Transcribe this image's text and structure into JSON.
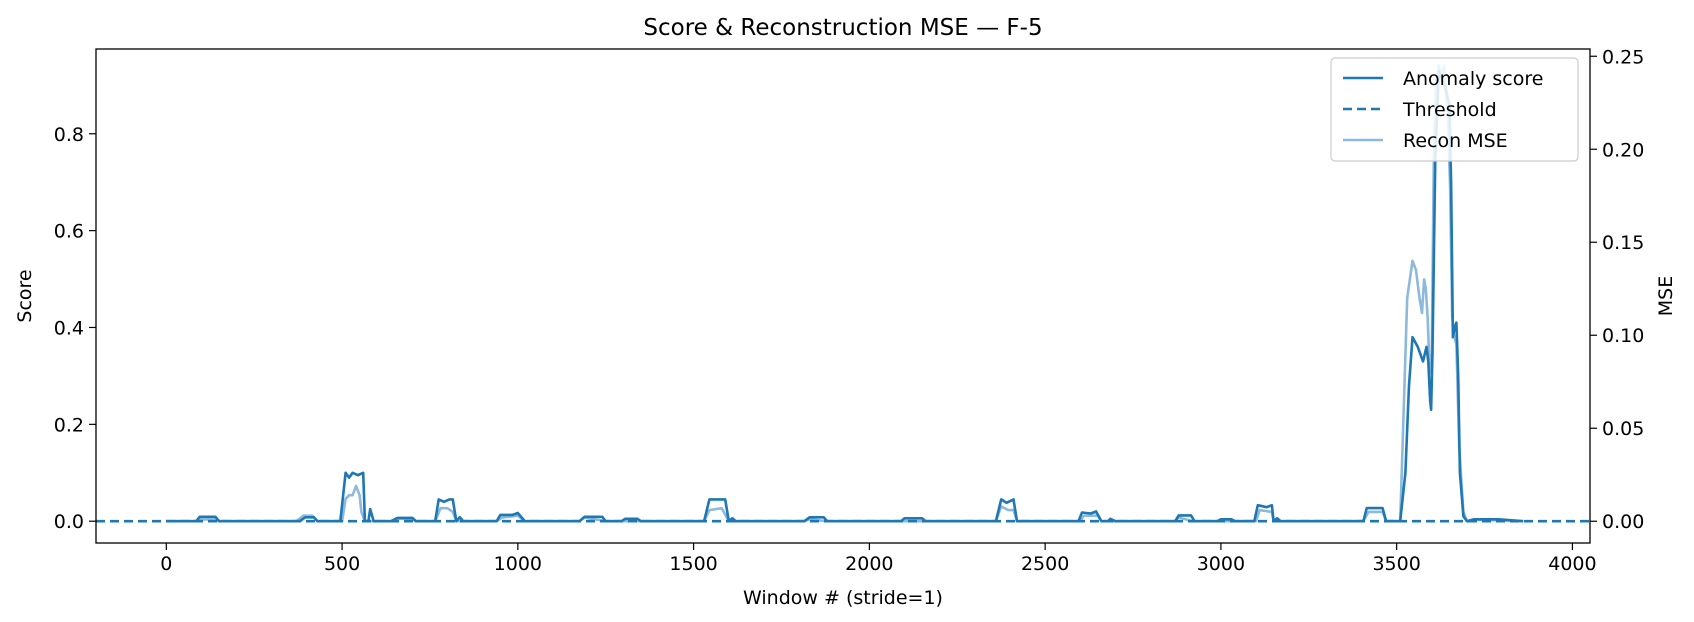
{
  "chart_data": {
    "type": "line",
    "title": "Score & Reconstruction MSE — F-5",
    "xlabel": "Window # (stride=1)",
    "ylabel": "Score",
    "y2label": "MSE",
    "xlim": [
      -200,
      4050
    ],
    "ylim": [
      -0.045,
      0.975
    ],
    "y2lim": [
      -0.0117,
      0.2539
    ],
    "xticks": [
      0,
      500,
      1000,
      1500,
      2000,
      2500,
      3000,
      3500,
      4000
    ],
    "yticks": [
      0.0,
      0.2,
      0.4,
      0.6,
      0.8
    ],
    "ytick_labels": [
      "0.0",
      "0.2",
      "0.4",
      "0.6",
      "0.8"
    ],
    "y2ticks": [
      0.0,
      0.05,
      0.1,
      0.15,
      0.2,
      0.25
    ],
    "y2tick_labels": [
      "0.00",
      "0.05",
      "0.10",
      "0.15",
      "0.20",
      "0.25"
    ],
    "grid": false,
    "legend_position": "top-right",
    "colors": {
      "score": "#1f77b4",
      "threshold": "#1f77b4",
      "mse": "#8cb9dc"
    },
    "threshold": 0.0,
    "series": [
      {
        "name": "Anomaly score",
        "axis": "left",
        "style": "solid",
        "points": [
          [
            0,
            0
          ],
          [
            85,
            0
          ],
          [
            95,
            0.009
          ],
          [
            140,
            0.009
          ],
          [
            150,
            0
          ],
          [
            380,
            0
          ],
          [
            395,
            0.008
          ],
          [
            420,
            0.008
          ],
          [
            430,
            0
          ],
          [
            495,
            0
          ],
          [
            510,
            0.1
          ],
          [
            520,
            0.09
          ],
          [
            530,
            0.1
          ],
          [
            545,
            0.095
          ],
          [
            560,
            0.1
          ],
          [
            565,
            0
          ],
          [
            575,
            0
          ],
          [
            580,
            0.025
          ],
          [
            590,
            0
          ],
          [
            640,
            0
          ],
          [
            655,
            0.006
          ],
          [
            700,
            0.006
          ],
          [
            710,
            0
          ],
          [
            765,
            0
          ],
          [
            775,
            0.045
          ],
          [
            790,
            0.04
          ],
          [
            805,
            0.045
          ],
          [
            815,
            0.045
          ],
          [
            825,
            0
          ],
          [
            835,
            0.008
          ],
          [
            845,
            0
          ],
          [
            940,
            0
          ],
          [
            950,
            0.013
          ],
          [
            985,
            0.013
          ],
          [
            1000,
            0.017
          ],
          [
            1020,
            0
          ],
          [
            1175,
            0
          ],
          [
            1190,
            0.009
          ],
          [
            1240,
            0.009
          ],
          [
            1250,
            0
          ],
          [
            1295,
            0
          ],
          [
            1305,
            0.005
          ],
          [
            1340,
            0.005
          ],
          [
            1350,
            0
          ],
          [
            1530,
            0
          ],
          [
            1545,
            0.045
          ],
          [
            1590,
            0.045
          ],
          [
            1600,
            0
          ],
          [
            1610,
            0.006
          ],
          [
            1620,
            0
          ],
          [
            1815,
            0
          ],
          [
            1830,
            0.008
          ],
          [
            1870,
            0.008
          ],
          [
            1880,
            0
          ],
          [
            2090,
            0
          ],
          [
            2100,
            0.006
          ],
          [
            2150,
            0.006
          ],
          [
            2160,
            0
          ],
          [
            2360,
            0
          ],
          [
            2375,
            0.045
          ],
          [
            2390,
            0.038
          ],
          [
            2410,
            0.045
          ],
          [
            2420,
            0
          ],
          [
            2595,
            0
          ],
          [
            2605,
            0.018
          ],
          [
            2630,
            0.016
          ],
          [
            2645,
            0.02
          ],
          [
            2660,
            0
          ],
          [
            2680,
            0
          ],
          [
            2685,
            0.005
          ],
          [
            2700,
            0
          ],
          [
            2870,
            0
          ],
          [
            2880,
            0.012
          ],
          [
            2915,
            0.012
          ],
          [
            2925,
            0
          ],
          [
            2990,
            0
          ],
          [
            3000,
            0.004
          ],
          [
            3030,
            0.004
          ],
          [
            3040,
            0
          ],
          [
            3095,
            0
          ],
          [
            3105,
            0.033
          ],
          [
            3130,
            0.029
          ],
          [
            3145,
            0.033
          ],
          [
            3150,
            0
          ],
          [
            3160,
            0.006
          ],
          [
            3170,
            0
          ],
          [
            3405,
            0
          ],
          [
            3415,
            0.027
          ],
          [
            3460,
            0.027
          ],
          [
            3470,
            0
          ],
          [
            3510,
            0
          ],
          [
            3525,
            0.1
          ],
          [
            3535,
            0.28
          ],
          [
            3545,
            0.38
          ],
          [
            3560,
            0.36
          ],
          [
            3575,
            0.33
          ],
          [
            3585,
            0.36
          ],
          [
            3590,
            0.33
          ],
          [
            3595,
            0.25
          ],
          [
            3598,
            0.23
          ],
          [
            3602,
            0.35
          ],
          [
            3610,
            0.75
          ],
          [
            3620,
            0.93
          ],
          [
            3630,
            0.91
          ],
          [
            3640,
            0.89
          ],
          [
            3650,
            0.86
          ],
          [
            3655,
            0.7
          ],
          [
            3660,
            0.38
          ],
          [
            3665,
            0.4
          ],
          [
            3670,
            0.41
          ],
          [
            3675,
            0.3
          ],
          [
            3680,
            0.1
          ],
          [
            3690,
            0.01
          ],
          [
            3700,
            0
          ],
          [
            3720,
            0.004
          ],
          [
            3790,
            0.004
          ],
          [
            3860,
            0
          ]
        ]
      },
      {
        "name": "Threshold",
        "axis": "left",
        "style": "dashed",
        "points": [
          [
            -200,
            0
          ],
          [
            4050,
            0
          ]
        ]
      },
      {
        "name": "Recon MSE",
        "axis": "right",
        "style": "solid",
        "points": [
          [
            0,
            0
          ],
          [
            85,
            0
          ],
          [
            95,
            0.001
          ],
          [
            140,
            0.001
          ],
          [
            150,
            0
          ],
          [
            370,
            0
          ],
          [
            390,
            0.003
          ],
          [
            415,
            0.003
          ],
          [
            430,
            0
          ],
          [
            500,
            0
          ],
          [
            510,
            0.012
          ],
          [
            520,
            0.014
          ],
          [
            530,
            0.014
          ],
          [
            540,
            0.019
          ],
          [
            550,
            0.014
          ],
          [
            555,
            0.005
          ],
          [
            565,
            0
          ],
          [
            640,
            0
          ],
          [
            660,
            0.002
          ],
          [
            700,
            0.002
          ],
          [
            710,
            0
          ],
          [
            765,
            0
          ],
          [
            780,
            0.007
          ],
          [
            800,
            0.007
          ],
          [
            815,
            0.005
          ],
          [
            825,
            0
          ],
          [
            940,
            0
          ],
          [
            955,
            0.002
          ],
          [
            1000,
            0.003
          ],
          [
            1020,
            0
          ],
          [
            1175,
            0
          ],
          [
            1190,
            0.002
          ],
          [
            1250,
            0
          ],
          [
            1530,
            0
          ],
          [
            1545,
            0.006
          ],
          [
            1580,
            0.007
          ],
          [
            1600,
            0
          ],
          [
            1815,
            0
          ],
          [
            1830,
            0.001
          ],
          [
            1880,
            0
          ],
          [
            2360,
            0
          ],
          [
            2375,
            0.008
          ],
          [
            2395,
            0.006
          ],
          [
            2410,
            0.006
          ],
          [
            2420,
            0
          ],
          [
            2600,
            0
          ],
          [
            2610,
            0.003
          ],
          [
            2650,
            0.003
          ],
          [
            2660,
            0
          ],
          [
            2870,
            0
          ],
          [
            2880,
            0.002
          ],
          [
            2920,
            0
          ],
          [
            3100,
            0
          ],
          [
            3110,
            0.006
          ],
          [
            3145,
            0.005
          ],
          [
            3150,
            0
          ],
          [
            3405,
            0
          ],
          [
            3420,
            0.005
          ],
          [
            3460,
            0.005
          ],
          [
            3470,
            0
          ],
          [
            3510,
            0
          ],
          [
            3520,
            0.06
          ],
          [
            3530,
            0.12
          ],
          [
            3545,
            0.14
          ],
          [
            3555,
            0.135
          ],
          [
            3565,
            0.12
          ],
          [
            3572,
            0.112
          ],
          [
            3578,
            0.13
          ],
          [
            3583,
            0.125
          ],
          [
            3588,
            0.11
          ],
          [
            3594,
            0.08
          ],
          [
            3600,
            0.09
          ],
          [
            3606,
            0.2
          ],
          [
            3612,
            0.235
          ],
          [
            3620,
            0.245
          ],
          [
            3628,
            0.24
          ],
          [
            3635,
            0.245
          ],
          [
            3645,
            0.22
          ],
          [
            3652,
            0.18
          ],
          [
            3658,
            0.11
          ],
          [
            3663,
            0.1
          ],
          [
            3670,
            0.095
          ],
          [
            3678,
            0.04
          ],
          [
            3690,
            0.005
          ],
          [
            3700,
            0
          ],
          [
            3720,
            0.001
          ],
          [
            3860,
            0
          ]
        ]
      }
    ]
  }
}
